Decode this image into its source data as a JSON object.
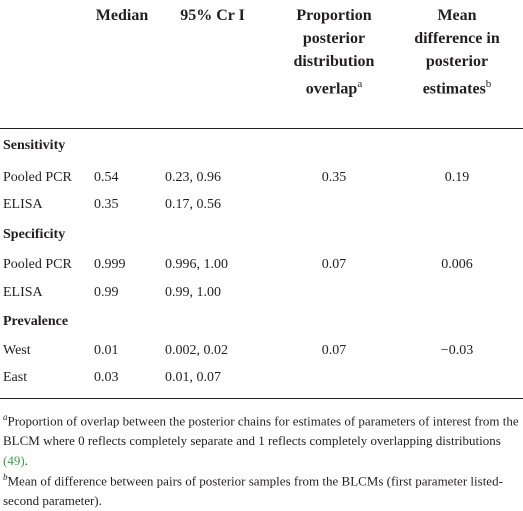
{
  "headers": {
    "median": "Median",
    "ci": "95% Cr I",
    "overlap": [
      "Proportion",
      "posterior",
      "distribution",
      "overlap"
    ],
    "overlap_sup": "a",
    "meandiff": [
      "Mean",
      "difference in",
      "posterior",
      "estimates"
    ],
    "meandiff_sup": "b"
  },
  "sections": {
    "sensitivity": "Sensitivity",
    "specificity": "Specificity",
    "prevalence": "Prevalence"
  },
  "rows": [
    {
      "label": "Pooled PCR",
      "median": "0.54",
      "ci": "0.23, 0.96",
      "overlap": "0.35",
      "diff": "0.19"
    },
    {
      "label": "ELISA",
      "median": "0.35",
      "ci": "0.17, 0.56",
      "overlap": "",
      "diff": ""
    },
    {
      "label": "Pooled PCR",
      "median": "0.999",
      "ci": "0.996, 1.00",
      "overlap": "0.07",
      "diff": "0.006"
    },
    {
      "label": "ELISA",
      "median": "0.99",
      "ci": "0.99, 1.00",
      "overlap": "",
      "diff": ""
    },
    {
      "label": "West",
      "median": "0.01",
      "ci": "0.002, 0.02",
      "overlap": "0.07",
      "diff": "−0.03"
    },
    {
      "label": "East",
      "median": "0.03",
      "ci": "0.01, 0.07",
      "overlap": "",
      "diff": ""
    }
  ],
  "footnotes": {
    "a_mark": "a",
    "a_text": "Proportion of overlap between the posterior chains for estimates of parameters of interest from the BLCM where 0 reflects completely separate and 1 reflects completely overlapping distributions",
    "a_ref": "(49)",
    "a_end": ".",
    "b_mark": "b",
    "b_text": "Mean of difference between pairs of posterior samples from the BLCMs (first parameter listed-second parameter)."
  }
}
